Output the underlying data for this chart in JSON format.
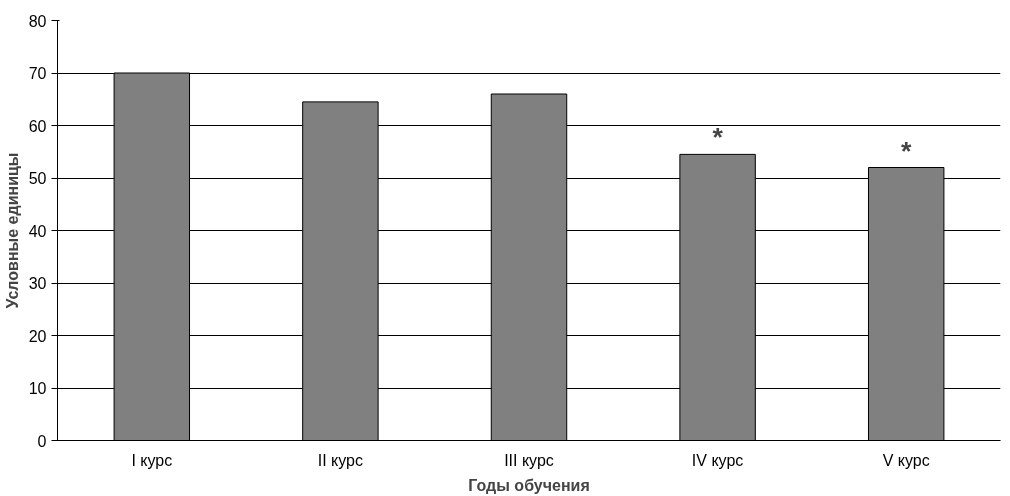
{
  "chart_data": {
    "type": "bar",
    "xlabel": "Годы обучения",
    "ylabel": "Условные единицы",
    "categories": [
      "I курс",
      "II курс",
      "III курс",
      "IV курс",
      "V курс"
    ],
    "values": [
      70,
      64.5,
      66,
      54.5,
      52
    ],
    "color": "#808080",
    "ylim": [
      0,
      80
    ],
    "yticks": [
      0,
      10,
      20,
      30,
      40,
      50,
      60,
      70,
      80
    ],
    "grid": "y",
    "annotations": [
      {
        "text": "*",
        "x": "IV курс",
        "y": 54.5
      },
      {
        "text": "*",
        "x": "V курс",
        "y": 52
      }
    ]
  }
}
